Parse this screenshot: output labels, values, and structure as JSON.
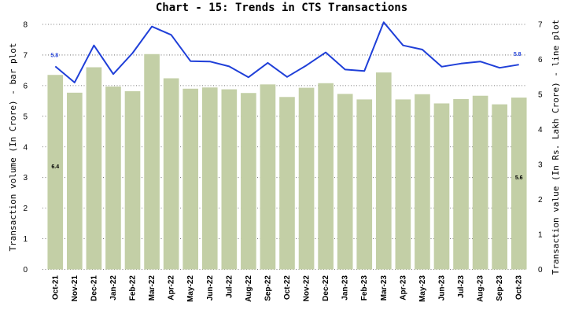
{
  "chart_data": {
    "type": "bar",
    "title": "Chart - 15: Trends in CTS Transactions",
    "ylabel_left": "Transaction volume (In Crore) - bar plot",
    "ylabel_right": "Transaction value (In Rs. Lakh Crore) - line plot",
    "categories": [
      "Oct-21",
      "Nov-21",
      "Dec-21",
      "Jan-22",
      "Feb-22",
      "Mar-22",
      "Apr-22",
      "May-22",
      "Jun-22",
      "Jul-22",
      "Aug-22",
      "Sep-22",
      "Oct-22",
      "Nov-22",
      "Dec-22",
      "Jan-23",
      "Feb-23",
      "Mar-23",
      "Apr-23",
      "May-23",
      "Jun-23",
      "Jul-23",
      "Aug-23",
      "Sep-23",
      "Oct-23"
    ],
    "left_axis": {
      "min": 0,
      "max": 8,
      "ticks": [
        0,
        1,
        2,
        3,
        4,
        5,
        6,
        7,
        8
      ]
    },
    "right_axis": {
      "min": 0,
      "max": 7,
      "ticks": [
        0,
        1,
        2,
        3,
        4,
        5,
        6,
        7
      ]
    },
    "grid": true,
    "series": [
      {
        "type": "bar",
        "axis": "left",
        "color": "#c3cfa6",
        "values": [
          6.35,
          5.77,
          6.6,
          5.97,
          5.82,
          7.03,
          6.24,
          5.9,
          5.94,
          5.88,
          5.76,
          6.04,
          5.63,
          5.93,
          6.08,
          5.73,
          5.55,
          6.43,
          5.55,
          5.72,
          5.42,
          5.56,
          5.67,
          5.39,
          5.61
        ]
      },
      {
        "type": "line",
        "axis": "right",
        "color": "#1f3fd8",
        "values": [
          5.8,
          5.34,
          6.4,
          5.58,
          6.18,
          6.94,
          6.7,
          5.95,
          5.94,
          5.8,
          5.49,
          5.9,
          5.5,
          5.83,
          6.2,
          5.71,
          5.67,
          7.06,
          6.4,
          6.28,
          5.79,
          5.88,
          5.94,
          5.76,
          5.85
        ]
      }
    ],
    "data_labels": {
      "bar_first": "6.4",
      "bar_last": "5.6",
      "line_first": "5.8",
      "line_last": "5.8"
    }
  }
}
